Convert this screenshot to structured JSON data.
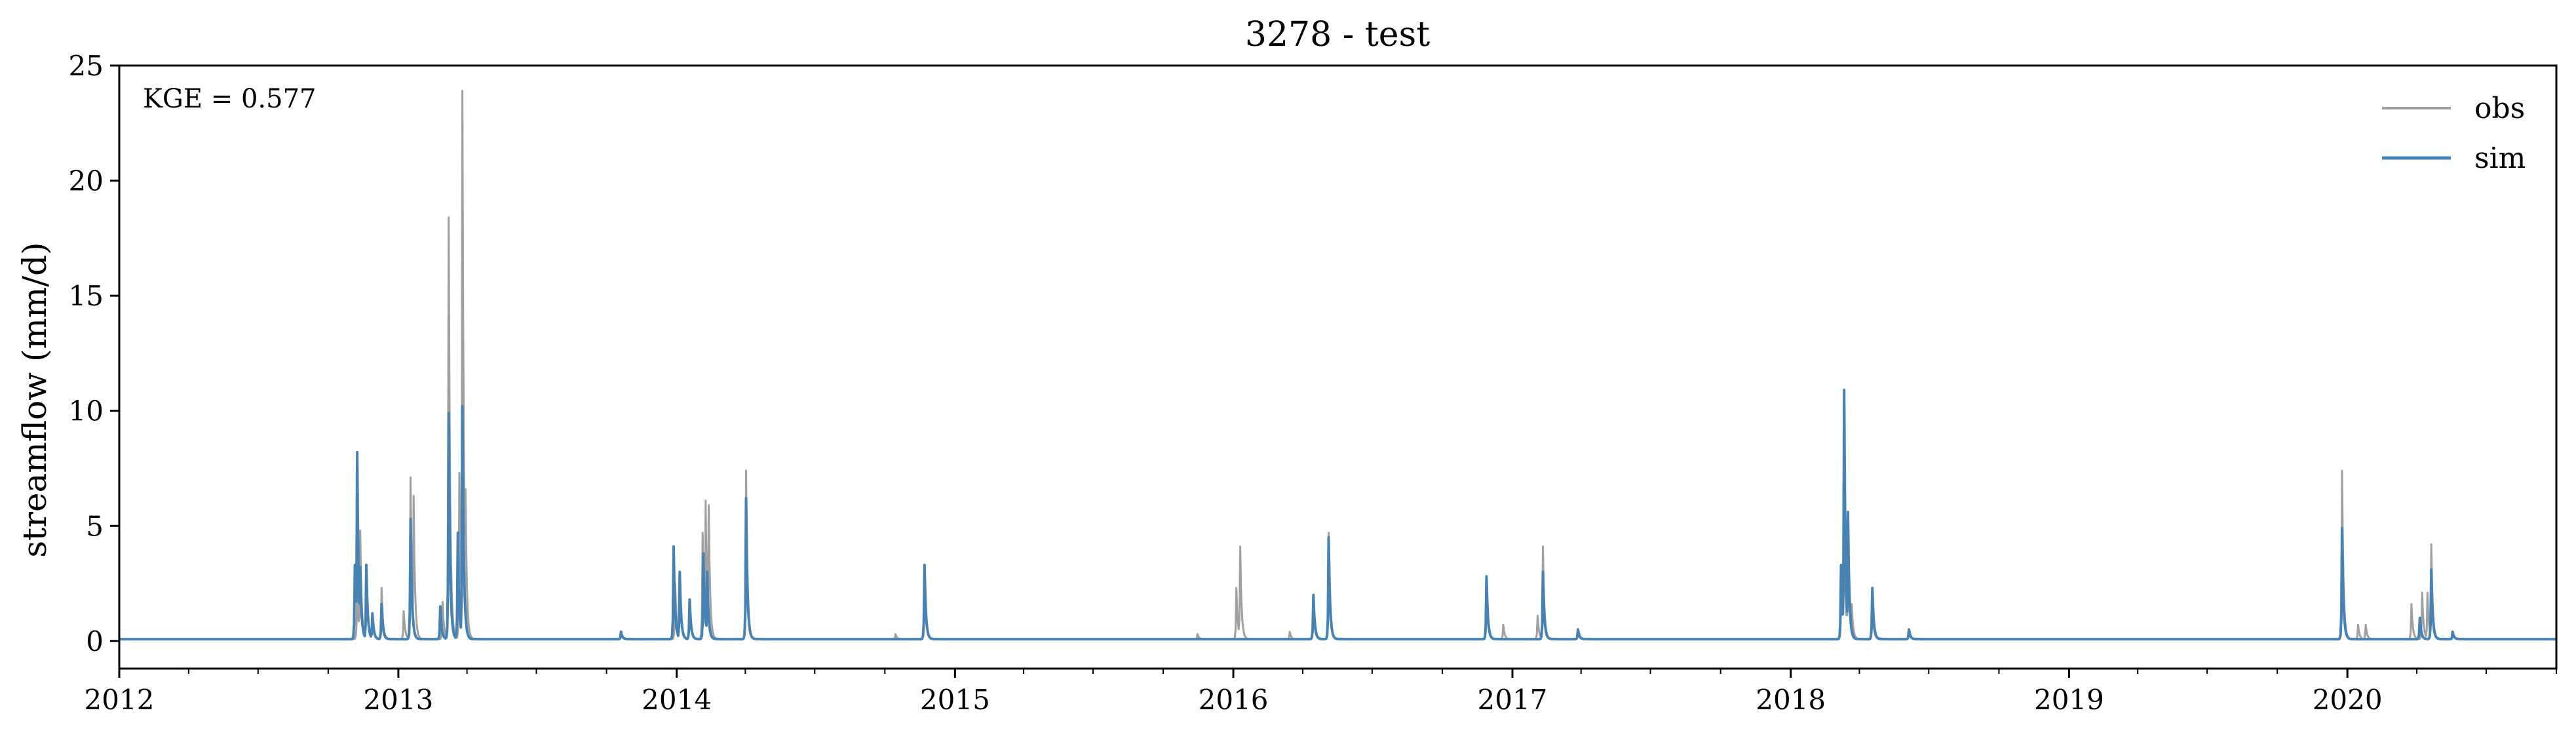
{
  "chart_data": {
    "type": "line",
    "title": "3278 - test",
    "xlabel": "",
    "ylabel": "streamflow (mm/d)",
    "xlim": [
      "2012-01-01",
      "2020-10-01"
    ],
    "ylim": [
      -1.2,
      25
    ],
    "xticks": [
      "2012",
      "2013",
      "2014",
      "2015",
      "2016",
      "2017",
      "2018",
      "2019",
      "2020"
    ],
    "yticks": [
      0,
      5,
      10,
      15,
      20,
      25
    ],
    "annotation": "KGE = 0.577",
    "legend": {
      "placement": "top-right",
      "entries": [
        "obs",
        "sim"
      ]
    },
    "grid": false,
    "baseline": 0.08,
    "series": [
      {
        "name": "obs",
        "color": "#a0a0a0",
        "peaks": [
          [
            "2012-11-08",
            2.4
          ],
          [
            "2012-11-12",
            4.8
          ],
          [
            "2012-11-20",
            3.0
          ],
          [
            "2012-11-28",
            1.0
          ],
          [
            "2012-12-10",
            2.3
          ],
          [
            "2013-01-08",
            1.3
          ],
          [
            "2013-01-17",
            7.1
          ],
          [
            "2013-01-21",
            6.3
          ],
          [
            "2013-02-28",
            1.7
          ],
          [
            "2013-03-08",
            18.4
          ],
          [
            "2013-03-22",
            7.3
          ],
          [
            "2013-03-26",
            23.9
          ],
          [
            "2013-03-30",
            6.6
          ],
          [
            "2013-10-20",
            0.3
          ],
          [
            "2013-12-30",
            2.5
          ],
          [
            "2014-01-05",
            3.0
          ],
          [
            "2014-01-18",
            1.6
          ],
          [
            "2014-02-04",
            4.7
          ],
          [
            "2014-02-08",
            6.1
          ],
          [
            "2014-02-12",
            5.9
          ],
          [
            "2014-04-02",
            7.4
          ],
          [
            "2014-10-15",
            0.3
          ],
          [
            "2014-11-22",
            3.2
          ],
          [
            "2015-11-15",
            0.3
          ],
          [
            "2016-01-05",
            2.3
          ],
          [
            "2016-01-10",
            4.1
          ],
          [
            "2016-03-15",
            0.4
          ],
          [
            "2016-04-15",
            1.5
          ],
          [
            "2016-05-05",
            4.7
          ],
          [
            "2016-11-28",
            2.8
          ],
          [
            "2016-12-20",
            0.7
          ],
          [
            "2017-02-03",
            1.1
          ],
          [
            "2017-02-10",
            4.1
          ],
          [
            "2017-03-28",
            0.4
          ],
          [
            "2018-03-08",
            3.3
          ],
          [
            "2018-03-12",
            5.5
          ],
          [
            "2018-03-17",
            5.2
          ],
          [
            "2018-03-22",
            1.6
          ],
          [
            "2018-04-18",
            1.6
          ],
          [
            "2018-06-05",
            0.5
          ],
          [
            "2019-12-25",
            7.4
          ],
          [
            "2020-01-15",
            0.7
          ],
          [
            "2020-01-25",
            0.7
          ],
          [
            "2020-03-25",
            1.6
          ],
          [
            "2020-04-08",
            2.1
          ],
          [
            "2020-04-15",
            2.1
          ],
          [
            "2020-04-20",
            4.2
          ],
          [
            "2020-05-18",
            0.4
          ]
        ]
      },
      {
        "name": "sim",
        "color": "#4682b4",
        "peaks": [
          [
            "2012-11-05",
            3.3
          ],
          [
            "2012-11-08",
            8.2
          ],
          [
            "2012-11-12",
            3.2
          ],
          [
            "2012-11-20",
            3.3
          ],
          [
            "2012-11-28",
            1.2
          ],
          [
            "2012-12-10",
            1.6
          ],
          [
            "2013-01-17",
            5.3
          ],
          [
            "2013-02-25",
            1.5
          ],
          [
            "2013-03-08",
            9.9
          ],
          [
            "2013-03-20",
            4.7
          ],
          [
            "2013-03-26",
            10.2
          ],
          [
            "2013-10-20",
            0.4
          ],
          [
            "2013-12-28",
            4.1
          ],
          [
            "2014-01-05",
            3.0
          ],
          [
            "2014-01-18",
            1.8
          ],
          [
            "2014-02-05",
            3.8
          ],
          [
            "2014-02-10",
            3.0
          ],
          [
            "2014-04-02",
            6.2
          ],
          [
            "2014-11-22",
            3.3
          ],
          [
            "2016-04-15",
            2.0
          ],
          [
            "2016-05-05",
            4.5
          ],
          [
            "2016-11-28",
            2.8
          ],
          [
            "2017-02-10",
            3.0
          ],
          [
            "2017-03-28",
            0.5
          ],
          [
            "2018-03-08",
            3.3
          ],
          [
            "2018-03-12",
            10.9
          ],
          [
            "2018-03-17",
            5.6
          ],
          [
            "2018-04-18",
            2.3
          ],
          [
            "2018-06-05",
            0.5
          ],
          [
            "2019-12-25",
            4.9
          ],
          [
            "2020-04-05",
            1.0
          ],
          [
            "2020-04-20",
            3.1
          ],
          [
            "2020-05-18",
            0.4
          ]
        ]
      }
    ]
  }
}
